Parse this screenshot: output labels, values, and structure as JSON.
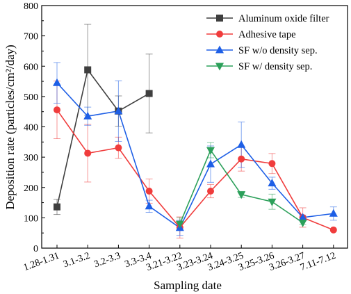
{
  "chart_data": {
    "type": "line",
    "xlabel": "Sampling date",
    "ylabel": "Deposition rate (particles/cm²/day)",
    "ylim": [
      0,
      800
    ],
    "yticks": [
      0,
      100,
      200,
      300,
      400,
      500,
      600,
      700,
      800
    ],
    "categories": [
      "1.28-1.31",
      "3.1-3.2",
      "3.2-3.3",
      "3.3-3.4",
      "3.21-3.22",
      "3.23-3.24",
      "3.24-3.25",
      "3.25-3.26",
      "3.26-3.27",
      "7.11-7.12"
    ],
    "legend_position": "top-right",
    "grid": false,
    "series": [
      {
        "name": "Aluminum oxide filter",
        "color": "#3f3f3f",
        "marker": "square",
        "values": [
          136,
          588,
          452,
          510,
          null,
          null,
          null,
          null,
          null,
          null
        ],
        "errors": [
          25,
          150,
          50,
          130,
          null,
          null,
          null,
          null,
          null,
          null
        ]
      },
      {
        "name": "Adhesive tape",
        "color": "#f03c3c",
        "marker": "circle",
        "values": [
          456,
          313,
          331,
          188,
          68,
          188,
          294,
          279,
          101,
          60
        ],
        "errors": [
          95,
          95,
          35,
          40,
          35,
          22,
          40,
          33,
          32,
          null
        ]
      },
      {
        "name": "SF w/o density sep.",
        "color": "#1e5fe6",
        "marker": "triangle-up",
        "values": [
          545,
          435,
          452,
          138,
          67,
          277,
          341,
          214,
          101,
          114
        ],
        "errors": [
          67,
          30,
          100,
          20,
          25,
          60,
          75,
          20,
          8,
          22
        ]
      },
      {
        "name": "SF w/ density sep.",
        "color": "#2ca05a",
        "marker": "triangle-down",
        "values": [
          null,
          null,
          null,
          null,
          80,
          323,
          177,
          153,
          84,
          null
        ],
        "errors": [
          null,
          null,
          null,
          null,
          20,
          25,
          10,
          25,
          5,
          null
        ]
      }
    ]
  }
}
